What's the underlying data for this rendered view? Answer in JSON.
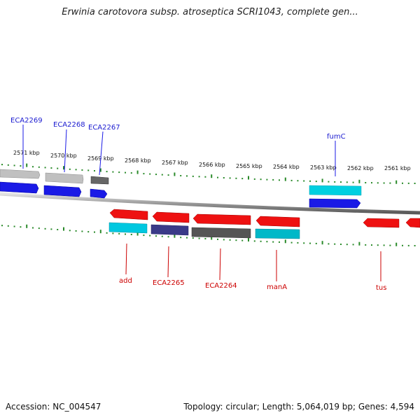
{
  "title": "Erwinia carotovora subsp. atroseptica SCRI1043, complete gen...",
  "scale": {
    "ticks": [
      "2571 kbp",
      "2570 kbp",
      "2569 kbp",
      "2568 kbp",
      "2567 kbp",
      "2566 kbp",
      "2565 kbp",
      "2564 kbp",
      "2563 kbp",
      "2562 kbp",
      "2561 kbp"
    ]
  },
  "genes": {
    "top": [
      "ECA2269",
      "ECA2268",
      "ECA2267",
      "fumC"
    ],
    "bottom": [
      "add",
      "ECA2265",
      "ECA2264",
      "manA",
      "tus"
    ]
  },
  "colors": {
    "forward_label": "#1a1ad0",
    "reverse_label": "#cc0000",
    "tick": "#2a8a2a"
  },
  "footer": {
    "accession": "Accession: NC_004547",
    "summary": "Topology: circular; Length: 5,064,019 bp; Genes: 4,594"
  }
}
